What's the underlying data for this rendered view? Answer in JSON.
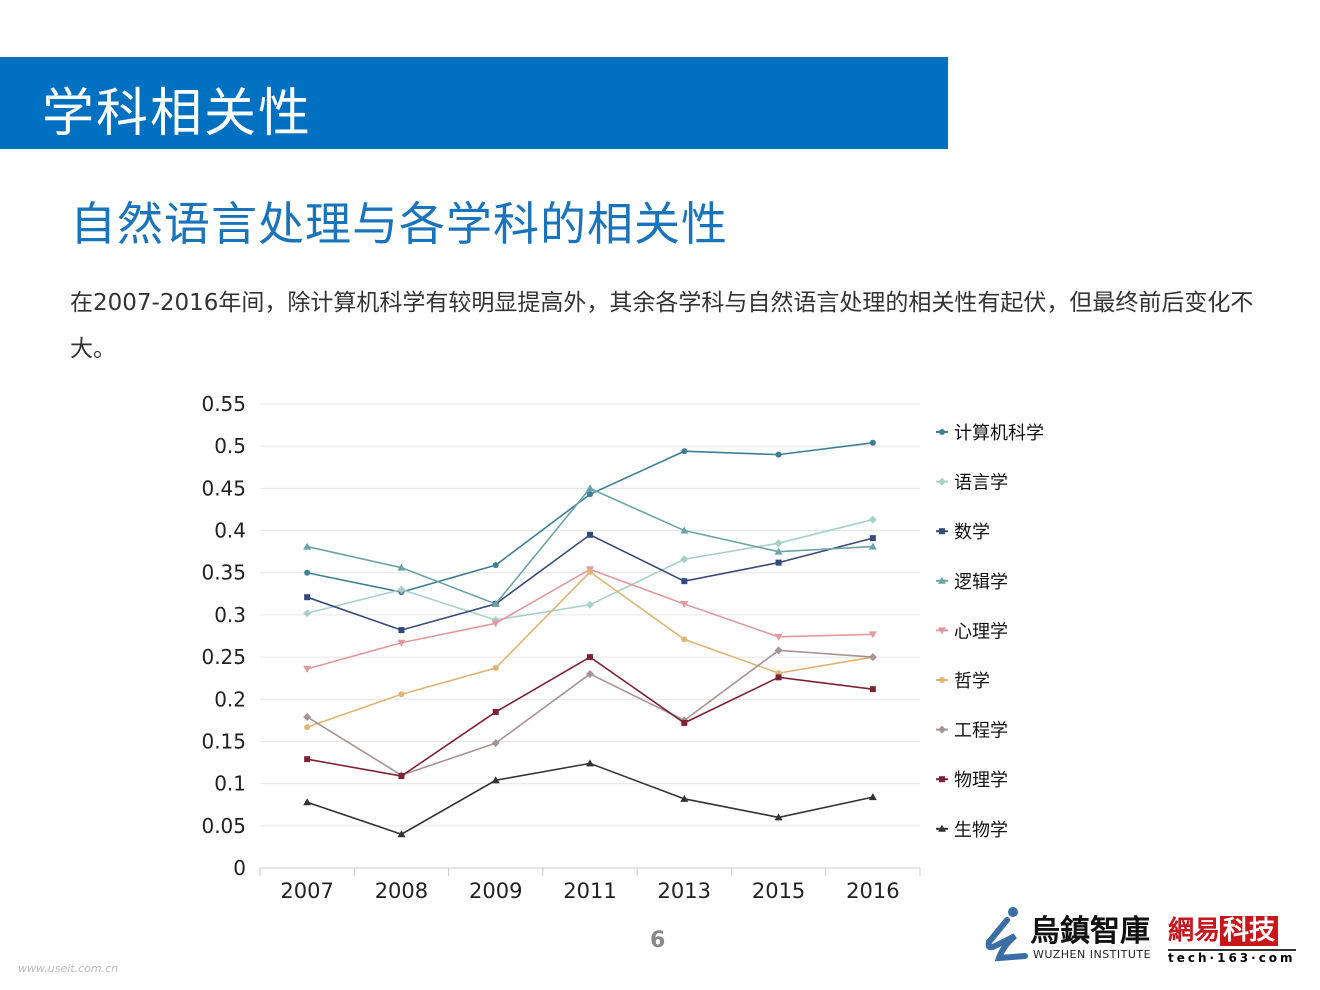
{
  "header": {
    "title": "学科相关性"
  },
  "subtitle": "自然语言处理与各学科的相关性",
  "description": "在2007-2016年间，除计算机科学有较明显提高外，其余各学科与自然语言处理的相关性有起伏，但最终前后变化不大。",
  "page_number": "6",
  "logos": {
    "wuzhen_cn": "烏鎮智庫",
    "wuzhen_en": "WUZHEN INSTITUTE",
    "netease_a": "網易",
    "netease_b": "科技",
    "netease_url": "tech·163·com"
  },
  "watermark": "www.useit.com.cn",
  "chart_data": {
    "type": "line",
    "categories": [
      "2007",
      "2008",
      "2009",
      "2011",
      "2013",
      "2015",
      "2016"
    ],
    "ylim": [
      0,
      0.55
    ],
    "yticks": [
      "0",
      "0.05",
      "0.1",
      "0.15",
      "0.2",
      "0.25",
      "0.3",
      "0.35",
      "0.4",
      "0.45",
      "0.5",
      "0.55"
    ],
    "grid": true,
    "legend": "right",
    "series": [
      {
        "name": "计算机科学",
        "color": "#3f7f96",
        "marker": "circle",
        "values": [
          0.35,
          0.327,
          0.359,
          0.443,
          0.494,
          0.49,
          0.504
        ]
      },
      {
        "name": "语言学",
        "color": "#a8d0c8",
        "marker": "diamond",
        "values": [
          0.302,
          0.33,
          0.294,
          0.312,
          0.366,
          0.385,
          0.413
        ]
      },
      {
        "name": "数学",
        "color": "#344a7a",
        "marker": "square",
        "values": [
          0.321,
          0.282,
          0.313,
          0.395,
          0.34,
          0.362,
          0.391
        ]
      },
      {
        "name": "逻辑学",
        "color": "#6aa3a8",
        "marker": "triangle",
        "values": [
          0.381,
          0.356,
          0.313,
          0.45,
          0.4,
          0.375,
          0.381
        ]
      },
      {
        "name": "心理学",
        "color": "#e29a9e",
        "marker": "triangle-down",
        "values": [
          0.236,
          0.267,
          0.29,
          0.354,
          0.313,
          0.274,
          0.277
        ]
      },
      {
        "name": "哲学",
        "color": "#e0b474",
        "marker": "circle",
        "values": [
          0.167,
          0.206,
          0.237,
          0.351,
          0.271,
          0.231,
          0.25
        ]
      },
      {
        "name": "工程学",
        "color": "#a89394",
        "marker": "diamond",
        "values": [
          0.179,
          0.11,
          0.148,
          0.23,
          0.175,
          0.258,
          0.25
        ]
      },
      {
        "name": "物理学",
        "color": "#7e2236",
        "marker": "square",
        "values": [
          0.129,
          0.109,
          0.185,
          0.25,
          0.172,
          0.226,
          0.212
        ]
      },
      {
        "name": "生物学",
        "color": "#333333",
        "marker": "triangle",
        "values": [
          0.078,
          0.04,
          0.104,
          0.124,
          0.082,
          0.06,
          0.084
        ]
      }
    ]
  }
}
